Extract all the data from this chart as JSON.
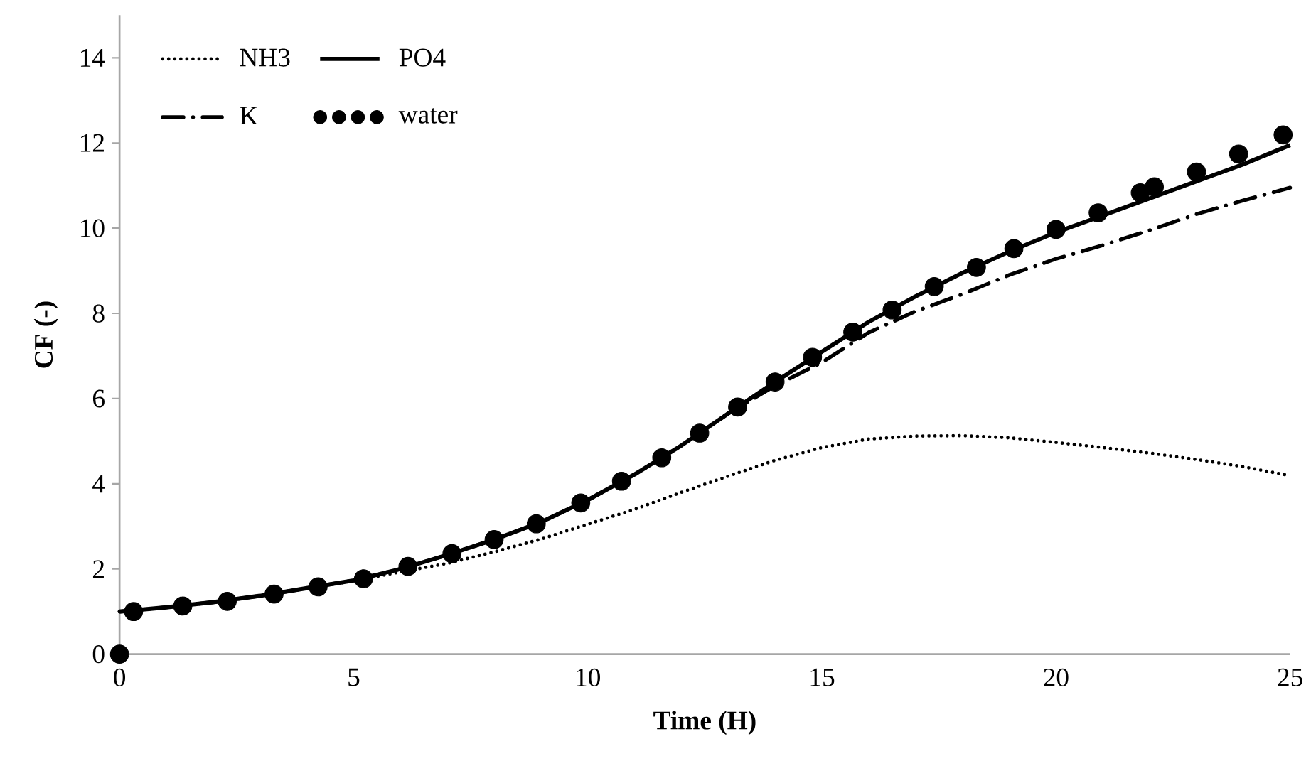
{
  "chart_data": {
    "type": "line",
    "xlabel": "Time (H)",
    "ylabel": "CF (-)",
    "xlim": [
      0,
      25
    ],
    "xticks": [
      0,
      5,
      10,
      15,
      20,
      25
    ],
    "ylim": [
      0,
      15
    ],
    "yticks": [
      0,
      2,
      4,
      6,
      8,
      10,
      12,
      14
    ],
    "grid": false,
    "legend": "top left",
    "series": [
      {
        "name": "NH3",
        "line_style": "dotted",
        "color": "#000000",
        "x": [
          0,
          1,
          2,
          3,
          4,
          5,
          6,
          7,
          8,
          9,
          10,
          11,
          12,
          13,
          14,
          15,
          16,
          17,
          18,
          19,
          20,
          21,
          22,
          23,
          24,
          25
        ],
        "values": [
          1.0,
          1.1,
          1.22,
          1.37,
          1.55,
          1.72,
          1.93,
          2.13,
          2.4,
          2.7,
          3.05,
          3.4,
          3.8,
          4.18,
          4.55,
          4.85,
          5.05,
          5.12,
          5.13,
          5.08,
          4.97,
          4.85,
          4.72,
          4.57,
          4.4,
          4.19
        ]
      },
      {
        "name": "PO4",
        "line_style": "solid",
        "color": "#000000",
        "x": [
          0,
          1,
          2,
          3,
          4,
          5,
          6,
          7,
          8,
          9,
          10,
          11,
          12,
          13,
          14,
          15,
          16,
          17,
          18,
          19,
          20,
          21,
          22,
          23,
          24,
          25
        ],
        "values": [
          1.0,
          1.1,
          1.22,
          1.37,
          1.55,
          1.73,
          2.0,
          2.33,
          2.69,
          3.1,
          3.62,
          4.22,
          4.9,
          5.65,
          6.39,
          7.1,
          7.8,
          8.4,
          8.95,
          9.45,
          9.9,
          10.3,
          10.7,
          11.1,
          11.5,
          11.95
        ]
      },
      {
        "name": "K",
        "line_style": "dashdot",
        "color": "#000000",
        "x": [
          0,
          1,
          2,
          3,
          4,
          5,
          6,
          7,
          8,
          9,
          10,
          11,
          12,
          13,
          14,
          15,
          16,
          17,
          18,
          19,
          20,
          21,
          22,
          23,
          24,
          25
        ],
        "values": [
          1.0,
          1.1,
          1.22,
          1.37,
          1.55,
          1.73,
          2.0,
          2.33,
          2.69,
          3.1,
          3.62,
          4.22,
          4.9,
          5.65,
          6.3,
          6.85,
          7.55,
          8.05,
          8.45,
          8.9,
          9.28,
          9.6,
          9.95,
          10.33,
          10.65,
          10.95
        ]
      },
      {
        "name": "water",
        "type": "scatter",
        "marker": "circle",
        "color": "#000000",
        "x": [
          0,
          0.3,
          1.35,
          2.3,
          3.3,
          4.24,
          5.21,
          6.16,
          7.1,
          8.0,
          8.9,
          9.85,
          10.72,
          11.58,
          12.39,
          13.2,
          14.0,
          14.8,
          15.66,
          16.5,
          17.4,
          18.3,
          19.1,
          20.0,
          20.9,
          21.8,
          22.1,
          23.0,
          23.9,
          24.85
        ],
        "values": [
          0,
          1.0,
          1.13,
          1.24,
          1.41,
          1.58,
          1.77,
          2.06,
          2.36,
          2.69,
          3.06,
          3.55,
          4.06,
          4.61,
          5.19,
          5.8,
          6.39,
          6.97,
          7.56,
          8.08,
          8.63,
          9.08,
          9.52,
          9.97,
          10.36,
          10.83,
          10.97,
          11.32,
          11.74,
          12.19
        ]
      }
    ]
  }
}
